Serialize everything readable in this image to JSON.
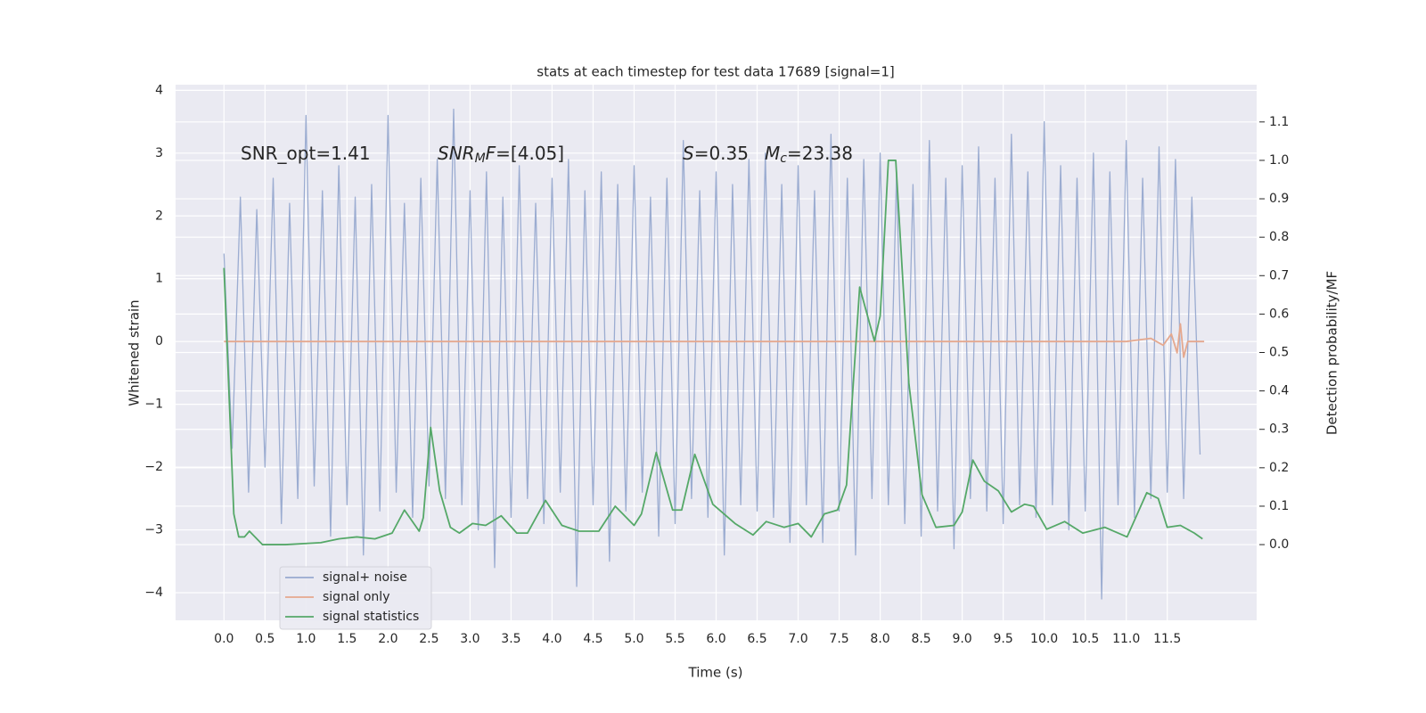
{
  "chart_data": {
    "type": "line",
    "title": "stats at each timestep for test data 17689 [signal=1]",
    "xlabel": "Time (s)",
    "ylabel": "Whitened strain",
    "y2label": "Detection probability/MF",
    "xlim": [
      -0.59,
      12.59
    ],
    "ylim": [
      -4.44,
      4.09
    ],
    "y2lim": [
      -0.197,
      1.197
    ],
    "xticks": [
      {
        "value": 0,
        "label": "0.0"
      },
      0.5,
      {
        "value": 1,
        "label": "1.0"
      },
      1.5,
      {
        "value": 2,
        "label": "2.0"
      },
      2.5,
      {
        "value": 3,
        "label": "3.0"
      },
      3.5,
      {
        "value": 4,
        "label": "4.0"
      },
      4.5,
      {
        "value": 5,
        "label": "5.0"
      },
      5.5,
      {
        "value": 6,
        "label": "6.0"
      },
      6.5,
      {
        "value": 7,
        "label": "7.0"
      },
      7.5,
      {
        "value": 8,
        "label": "8.0"
      },
      8.5,
      {
        "value": 9,
        "label": "9.0"
      },
      9.5,
      {
        "value": 10,
        "label": "10.0"
      },
      10.5,
      {
        "value": 11,
        "label": "11.0"
      },
      11.5
    ],
    "yticks": [
      {
        "value": -4,
        "label": "−4"
      },
      {
        "value": -3,
        "label": "−3"
      },
      {
        "value": -2,
        "label": "−2"
      },
      {
        "value": -1,
        "label": "−1"
      },
      0,
      1,
      2,
      3,
      4
    ],
    "y2ticks": [
      {
        "value": 0,
        "label": "0.0"
      },
      0.1,
      0.2,
      0.3,
      0.4,
      0.5,
      0.6,
      0.7,
      0.8,
      0.9,
      {
        "value": 1,
        "label": "1.0"
      },
      1.1
    ],
    "grid": true,
    "legend": "lower left",
    "annotations": [
      {
        "parts": [
          {
            "text": "SNR_opt=1.41"
          }
        ]
      },
      {
        "parts": [
          {
            "text": "SNR",
            "italic": true
          },
          {
            "text": "M",
            "italic": true,
            "sub": true
          },
          {
            "text": "F",
            "italic": true
          },
          {
            "text": "=[4.05]"
          }
        ]
      },
      {
        "parts": [
          {
            "text": "S",
            "italic": true
          },
          {
            "text": "=0.35"
          }
        ]
      },
      {
        "parts": [
          {
            "text": "M",
            "italic": true
          },
          {
            "text": "c",
            "italic": true,
            "sub": true
          },
          {
            "text": "=23.38"
          }
        ]
      }
    ],
    "series": [
      {
        "name": "signal+ noise",
        "color": "#97a9cf",
        "x": [
          0.0,
          0.1,
          0.2,
          0.3,
          0.4,
          0.5,
          0.6,
          0.7,
          0.8,
          0.9,
          1.0,
          1.1,
          1.2,
          1.3,
          1.4,
          1.5,
          1.6,
          1.7,
          1.8,
          1.9,
          2.0,
          2.1,
          2.2,
          2.3,
          2.4,
          2.5,
          2.6,
          2.7,
          2.8,
          2.9,
          3.0,
          3.1,
          3.2,
          3.3,
          3.4,
          3.5,
          3.6,
          3.7,
          3.8,
          3.9,
          4.0,
          4.1,
          4.2,
          4.3,
          4.4,
          4.5,
          4.6,
          4.7,
          4.8,
          4.9,
          5.0,
          5.1,
          5.2,
          5.3,
          5.4,
          5.5,
          5.6,
          5.7,
          5.8,
          5.9,
          6.0,
          6.1,
          6.2,
          6.3,
          6.4,
          6.5,
          6.6,
          6.7,
          6.8,
          6.9,
          7.0,
          7.1,
          7.2,
          7.3,
          7.4,
          7.5,
          7.6,
          7.7,
          7.8,
          7.9,
          8.0,
          8.1,
          8.2,
          8.3,
          8.4,
          8.5,
          8.6,
          8.7,
          8.8,
          8.9,
          9.0,
          9.1,
          9.2,
          9.3,
          9.4,
          9.5,
          9.6,
          9.7,
          9.8,
          9.9,
          10.0,
          10.1,
          10.2,
          10.3,
          10.4,
          10.5,
          10.6,
          10.7,
          10.8,
          10.9,
          11.0,
          11.1,
          11.2,
          11.3,
          11.4,
          11.5,
          11.6,
          11.7,
          11.8,
          11.9
        ],
        "values": [
          1.4,
          -1.7,
          2.3,
          -2.4,
          2.1,
          -2.0,
          2.6,
          -2.9,
          2.2,
          -2.5,
          3.6,
          -2.3,
          2.4,
          -3.1,
          2.8,
          -2.6,
          2.3,
          -3.4,
          2.5,
          -2.7,
          3.6,
          -2.4,
          2.2,
          -2.8,
          2.6,
          -2.3,
          2.9,
          -2.5,
          3.7,
          -2.6,
          2.4,
          -3.0,
          2.7,
          -3.6,
          2.3,
          -2.8,
          2.8,
          -2.5,
          2.2,
          -2.9,
          2.6,
          -2.4,
          2.9,
          -3.9,
          2.4,
          -2.6,
          2.7,
          -3.5,
          2.5,
          -2.7,
          2.8,
          -2.4,
          2.3,
          -3.1,
          2.6,
          -2.9,
          3.2,
          -2.5,
          2.4,
          -2.8,
          2.7,
          -3.4,
          2.5,
          -2.6,
          2.9,
          -2.7,
          3.0,
          -2.8,
          2.5,
          -3.2,
          2.8,
          -2.6,
          2.4,
          -3.2,
          3.3,
          -2.7,
          2.6,
          -3.4,
          2.9,
          -2.5,
          3.0,
          -2.6,
          2.7,
          -2.9,
          2.5,
          -3.1,
          3.2,
          -2.7,
          2.6,
          -3.3,
          2.8,
          -2.5,
          3.1,
          -2.7,
          2.6,
          -2.9,
          3.3,
          -2.6,
          2.7,
          -2.8,
          3.5,
          -2.6,
          2.8,
          -3.0,
          2.6,
          -2.7,
          3.0,
          -4.1,
          2.7,
          -2.6,
          3.2,
          -2.8,
          2.6,
          -2.5,
          3.1,
          -2.4,
          2.9,
          -2.5,
          2.3,
          -1.8
        ]
      },
      {
        "name": "signal only",
        "color": "#e5a88e",
        "x": [
          0,
          11.0,
          11.3,
          11.45,
          11.55,
          11.62,
          11.66,
          11.7,
          11.75,
          11.95
        ],
        "values": [
          0,
          0,
          0.05,
          -0.06,
          0.12,
          -0.18,
          0.28,
          -0.25,
          0,
          0
        ]
      },
      {
        "name": "signal statistics",
        "color": "#55a868",
        "axis": "y2",
        "x": [
          0,
          0.12,
          0.18,
          0.25,
          0.31,
          0.47,
          0.75,
          1.18,
          1.4,
          1.62,
          1.84,
          2.05,
          2.2,
          2.38,
          2.43,
          2.52,
          2.63,
          2.76,
          2.87,
          3.03,
          3.19,
          3.38,
          3.57,
          3.7,
          3.92,
          4.12,
          4.33,
          4.57,
          4.77,
          5.0,
          5.09,
          5.27,
          5.47,
          5.58,
          5.74,
          5.96,
          6.23,
          6.45,
          6.61,
          6.83,
          7.0,
          7.16,
          7.32,
          7.48,
          7.59,
          7.75,
          7.93,
          8.0,
          8.1,
          8.19,
          8.35,
          8.51,
          8.68,
          8.9,
          9.0,
          9.13,
          9.27,
          9.44,
          9.6,
          9.76,
          9.87,
          10.03,
          10.25,
          10.47,
          10.74,
          11.01,
          11.25,
          11.39,
          11.5,
          11.66,
          11.83,
          11.93
        ],
        "values": [
          0.72,
          0.08,
          0.02,
          0.02,
          0.035,
          0.0,
          0.0,
          0.005,
          0.015,
          0.02,
          0.015,
          0.03,
          0.09,
          0.035,
          0.07,
          0.305,
          0.14,
          0.045,
          0.03,
          0.055,
          0.05,
          0.075,
          0.03,
          0.03,
          0.115,
          0.05,
          0.035,
          0.035,
          0.1,
          0.05,
          0.08,
          0.24,
          0.09,
          0.09,
          0.235,
          0.105,
          0.055,
          0.025,
          0.06,
          0.045,
          0.055,
          0.02,
          0.08,
          0.09,
          0.155,
          0.67,
          0.53,
          0.595,
          1.0,
          1.0,
          0.42,
          0.13,
          0.045,
          0.05,
          0.085,
          0.22,
          0.165,
          0.14,
          0.085,
          0.105,
          0.1,
          0.04,
          0.06,
          0.03,
          0.045,
          0.02,
          0.135,
          0.12,
          0.045,
          0.05,
          0.03,
          0.015
        ]
      }
    ]
  }
}
